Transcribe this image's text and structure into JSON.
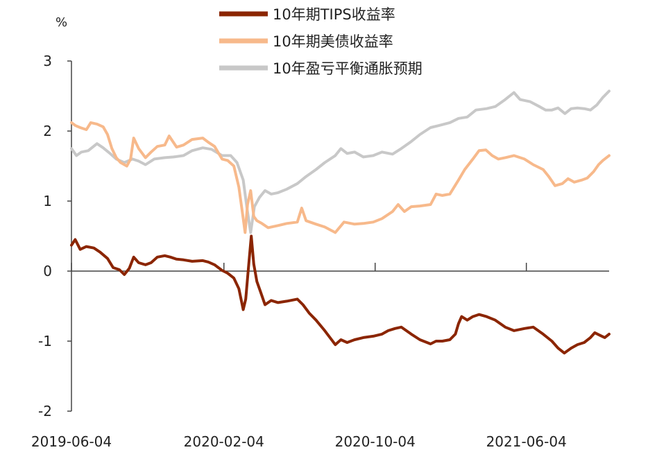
{
  "chart_data": {
    "type": "line",
    "unit_label": "%",
    "ylim": [
      -2,
      3
    ],
    "y_ticks": [
      "3",
      "2",
      "1",
      "0",
      "-1",
      "-2"
    ],
    "x_ticks": [
      "2019-06-04",
      "2020-02-04",
      "2020-10-04",
      "2021-06-04"
    ],
    "xlim": [
      "2019-06-04",
      "2021-10-15"
    ],
    "legend_position": "top",
    "series": [
      {
        "name": "10年期TIPS收益率",
        "color": "#8B2500",
        "points": [
          [
            "2019-06-04",
            0.37
          ],
          [
            "2019-06-10",
            0.45
          ],
          [
            "2019-06-18",
            0.31
          ],
          [
            "2019-06-28",
            0.35
          ],
          [
            "2019-07-10",
            0.33
          ],
          [
            "2019-07-20",
            0.27
          ],
          [
            "2019-08-01",
            0.18
          ],
          [
            "2019-08-10",
            0.05
          ],
          [
            "2019-08-20",
            0.02
          ],
          [
            "2019-08-28",
            -0.05
          ],
          [
            "2019-09-05",
            0.04
          ],
          [
            "2019-09-12",
            0.2
          ],
          [
            "2019-09-20",
            0.12
          ],
          [
            "2019-10-01",
            0.09
          ],
          [
            "2019-10-10",
            0.12
          ],
          [
            "2019-10-20",
            0.2
          ],
          [
            "2019-11-01",
            0.22
          ],
          [
            "2019-11-10",
            0.2
          ],
          [
            "2019-11-20",
            0.17
          ],
          [
            "2019-12-01",
            0.16
          ],
          [
            "2019-12-15",
            0.14
          ],
          [
            "2020-01-01",
            0.15
          ],
          [
            "2020-01-10",
            0.13
          ],
          [
            "2020-01-20",
            0.09
          ],
          [
            "2020-02-01",
            0.01
          ],
          [
            "2020-02-10",
            -0.03
          ],
          [
            "2020-02-20",
            -0.1
          ],
          [
            "2020-02-28",
            -0.25
          ],
          [
            "2020-03-06",
            -0.55
          ],
          [
            "2020-03-10",
            -0.4
          ],
          [
            "2020-03-14",
            0.0
          ],
          [
            "2020-03-19",
            0.5
          ],
          [
            "2020-03-23",
            0.1
          ],
          [
            "2020-03-28",
            -0.15
          ],
          [
            "2020-04-03",
            -0.3
          ],
          [
            "2020-04-10",
            -0.48
          ],
          [
            "2020-04-20",
            -0.42
          ],
          [
            "2020-05-01",
            -0.45
          ],
          [
            "2020-05-15",
            -0.43
          ],
          [
            "2020-06-01",
            -0.4
          ],
          [
            "2020-06-10",
            -0.48
          ],
          [
            "2020-06-20",
            -0.6
          ],
          [
            "2020-07-01",
            -0.7
          ],
          [
            "2020-07-15",
            -0.85
          ],
          [
            "2020-08-01",
            -1.05
          ],
          [
            "2020-08-10",
            -0.98
          ],
          [
            "2020-08-20",
            -1.02
          ],
          [
            "2020-09-01",
            -0.98
          ],
          [
            "2020-09-15",
            -0.95
          ],
          [
            "2020-10-01",
            -0.93
          ],
          [
            "2020-10-15",
            -0.9
          ],
          [
            "2020-10-25",
            -0.85
          ],
          [
            "2020-11-05",
            -0.82
          ],
          [
            "2020-11-15",
            -0.8
          ],
          [
            "2020-12-01",
            -0.9
          ],
          [
            "2020-12-15",
            -0.98
          ],
          [
            "2021-01-01",
            -1.04
          ],
          [
            "2021-01-10",
            -1.0
          ],
          [
            "2021-01-20",
            -1.0
          ],
          [
            "2021-02-01",
            -0.98
          ],
          [
            "2021-02-10",
            -0.9
          ],
          [
            "2021-02-15",
            -0.75
          ],
          [
            "2021-02-20",
            -0.65
          ],
          [
            "2021-03-01",
            -0.7
          ],
          [
            "2021-03-10",
            -0.65
          ],
          [
            "2021-03-20",
            -0.62
          ],
          [
            "2021-04-01",
            -0.65
          ],
          [
            "2021-04-15",
            -0.7
          ],
          [
            "2021-05-01",
            -0.8
          ],
          [
            "2021-05-15",
            -0.85
          ],
          [
            "2021-06-01",
            -0.82
          ],
          [
            "2021-06-15",
            -0.8
          ],
          [
            "2021-07-01",
            -0.9
          ],
          [
            "2021-07-15",
            -1.0
          ],
          [
            "2021-07-25",
            -1.1
          ],
          [
            "2021-08-04",
            -1.17
          ],
          [
            "2021-08-15",
            -1.1
          ],
          [
            "2021-08-25",
            -1.05
          ],
          [
            "2021-09-05",
            -1.02
          ],
          [
            "2021-09-15",
            -0.95
          ],
          [
            "2021-09-22",
            -0.88
          ],
          [
            "2021-10-01",
            -0.92
          ],
          [
            "2021-10-08",
            -0.95
          ],
          [
            "2021-10-15",
            -0.9
          ]
        ]
      },
      {
        "name": "10年期美债收益率",
        "color": "#F7B98B",
        "points": [
          [
            "2019-06-04",
            2.12
          ],
          [
            "2019-06-10",
            2.08
          ],
          [
            "2019-06-18",
            2.05
          ],
          [
            "2019-06-28",
            2.02
          ],
          [
            "2019-07-05",
            2.12
          ],
          [
            "2019-07-15",
            2.1
          ],
          [
            "2019-07-25",
            2.06
          ],
          [
            "2019-08-01",
            1.95
          ],
          [
            "2019-08-08",
            1.75
          ],
          [
            "2019-08-15",
            1.62
          ],
          [
            "2019-08-22",
            1.55
          ],
          [
            "2019-09-01",
            1.5
          ],
          [
            "2019-09-07",
            1.6
          ],
          [
            "2019-09-12",
            1.9
          ],
          [
            "2019-09-20",
            1.75
          ],
          [
            "2019-10-01",
            1.62
          ],
          [
            "2019-10-10",
            1.7
          ],
          [
            "2019-10-20",
            1.78
          ],
          [
            "2019-11-01",
            1.8
          ],
          [
            "2019-11-08",
            1.93
          ],
          [
            "2019-11-20",
            1.77
          ],
          [
            "2019-12-01",
            1.8
          ],
          [
            "2019-12-15",
            1.88
          ],
          [
            "2020-01-01",
            1.9
          ],
          [
            "2020-01-10",
            1.84
          ],
          [
            "2020-01-20",
            1.78
          ],
          [
            "2020-02-01",
            1.6
          ],
          [
            "2020-02-10",
            1.58
          ],
          [
            "2020-02-20",
            1.5
          ],
          [
            "2020-02-28",
            1.2
          ],
          [
            "2020-03-06",
            0.75
          ],
          [
            "2020-03-09",
            0.55
          ],
          [
            "2020-03-13",
            0.95
          ],
          [
            "2020-03-18",
            1.15
          ],
          [
            "2020-03-23",
            0.78
          ],
          [
            "2020-03-28",
            0.72
          ],
          [
            "2020-04-05",
            0.68
          ],
          [
            "2020-04-15",
            0.62
          ],
          [
            "2020-05-01",
            0.65
          ],
          [
            "2020-05-15",
            0.68
          ],
          [
            "2020-06-01",
            0.7
          ],
          [
            "2020-06-08",
            0.9
          ],
          [
            "2020-06-15",
            0.72
          ],
          [
            "2020-07-01",
            0.67
          ],
          [
            "2020-07-15",
            0.63
          ],
          [
            "2020-08-01",
            0.55
          ],
          [
            "2020-08-15",
            0.7
          ],
          [
            "2020-09-01",
            0.67
          ],
          [
            "2020-09-15",
            0.68
          ],
          [
            "2020-10-01",
            0.7
          ],
          [
            "2020-10-15",
            0.75
          ],
          [
            "2020-11-01",
            0.85
          ],
          [
            "2020-11-10",
            0.95
          ],
          [
            "2020-11-20",
            0.85
          ],
          [
            "2020-12-01",
            0.92
          ],
          [
            "2020-12-15",
            0.93
          ],
          [
            "2021-01-01",
            0.95
          ],
          [
            "2021-01-10",
            1.1
          ],
          [
            "2021-01-20",
            1.08
          ],
          [
            "2021-02-01",
            1.1
          ],
          [
            "2021-02-15",
            1.3
          ],
          [
            "2021-02-25",
            1.45
          ],
          [
            "2021-03-10",
            1.6
          ],
          [
            "2021-03-20",
            1.72
          ],
          [
            "2021-03-31",
            1.73
          ],
          [
            "2021-04-10",
            1.65
          ],
          [
            "2021-04-20",
            1.6
          ],
          [
            "2021-05-01",
            1.62
          ],
          [
            "2021-05-15",
            1.65
          ],
          [
            "2021-06-01",
            1.6
          ],
          [
            "2021-06-15",
            1.52
          ],
          [
            "2021-07-01",
            1.45
          ],
          [
            "2021-07-10",
            1.35
          ],
          [
            "2021-07-20",
            1.22
          ],
          [
            "2021-08-01",
            1.25
          ],
          [
            "2021-08-10",
            1.32
          ],
          [
            "2021-08-20",
            1.27
          ],
          [
            "2021-09-01",
            1.3
          ],
          [
            "2021-09-10",
            1.33
          ],
          [
            "2021-09-20",
            1.42
          ],
          [
            "2021-09-28",
            1.52
          ],
          [
            "2021-10-05",
            1.58
          ],
          [
            "2021-10-15",
            1.65
          ]
        ]
      },
      {
        "name": "10年盈亏平衡通胀预期",
        "color": "#C8C8C8",
        "points": [
          [
            "2019-06-04",
            1.75
          ],
          [
            "2019-06-12",
            1.65
          ],
          [
            "2019-06-20",
            1.7
          ],
          [
            "2019-07-01",
            1.72
          ],
          [
            "2019-07-15",
            1.82
          ],
          [
            "2019-07-25",
            1.76
          ],
          [
            "2019-08-05",
            1.68
          ],
          [
            "2019-08-15",
            1.6
          ],
          [
            "2019-08-28",
            1.55
          ],
          [
            "2019-09-10",
            1.6
          ],
          [
            "2019-09-20",
            1.57
          ],
          [
            "2019-10-01",
            1.52
          ],
          [
            "2019-10-15",
            1.6
          ],
          [
            "2019-11-01",
            1.62
          ],
          [
            "2019-11-15",
            1.63
          ],
          [
            "2019-12-01",
            1.65
          ],
          [
            "2019-12-15",
            1.72
          ],
          [
            "2020-01-01",
            1.76
          ],
          [
            "2020-01-15",
            1.74
          ],
          [
            "2020-02-01",
            1.65
          ],
          [
            "2020-02-15",
            1.65
          ],
          [
            "2020-02-25",
            1.55
          ],
          [
            "2020-03-06",
            1.3
          ],
          [
            "2020-03-12",
            0.9
          ],
          [
            "2020-03-18",
            0.55
          ],
          [
            "2020-03-24",
            0.92
          ],
          [
            "2020-04-01",
            1.05
          ],
          [
            "2020-04-10",
            1.15
          ],
          [
            "2020-04-20",
            1.1
          ],
          [
            "2020-05-01",
            1.12
          ],
          [
            "2020-05-15",
            1.17
          ],
          [
            "2020-06-01",
            1.25
          ],
          [
            "2020-06-15",
            1.35
          ],
          [
            "2020-07-01",
            1.45
          ],
          [
            "2020-07-15",
            1.55
          ],
          [
            "2020-08-01",
            1.65
          ],
          [
            "2020-08-10",
            1.75
          ],
          [
            "2020-08-20",
            1.68
          ],
          [
            "2020-09-01",
            1.7
          ],
          [
            "2020-09-15",
            1.63
          ],
          [
            "2020-10-01",
            1.65
          ],
          [
            "2020-10-15",
            1.7
          ],
          [
            "2020-11-01",
            1.67
          ],
          [
            "2020-11-15",
            1.75
          ],
          [
            "2020-12-01",
            1.85
          ],
          [
            "2020-12-15",
            1.95
          ],
          [
            "2021-01-01",
            2.05
          ],
          [
            "2021-01-15",
            2.08
          ],
          [
            "2021-02-01",
            2.12
          ],
          [
            "2021-02-15",
            2.18
          ],
          [
            "2021-03-01",
            2.2
          ],
          [
            "2021-03-15",
            2.3
          ],
          [
            "2021-04-01",
            2.32
          ],
          [
            "2021-04-15",
            2.35
          ],
          [
            "2021-05-01",
            2.45
          ],
          [
            "2021-05-15",
            2.55
          ],
          [
            "2021-05-25",
            2.45
          ],
          [
            "2021-06-10",
            2.42
          ],
          [
            "2021-06-25",
            2.35
          ],
          [
            "2021-07-05",
            2.3
          ],
          [
            "2021-07-15",
            2.3
          ],
          [
            "2021-07-25",
            2.33
          ],
          [
            "2021-08-05",
            2.25
          ],
          [
            "2021-08-15",
            2.32
          ],
          [
            "2021-08-25",
            2.33
          ],
          [
            "2021-09-05",
            2.32
          ],
          [
            "2021-09-15",
            2.3
          ],
          [
            "2021-09-25",
            2.37
          ],
          [
            "2021-10-05",
            2.48
          ],
          [
            "2021-10-15",
            2.57
          ]
        ]
      }
    ]
  }
}
